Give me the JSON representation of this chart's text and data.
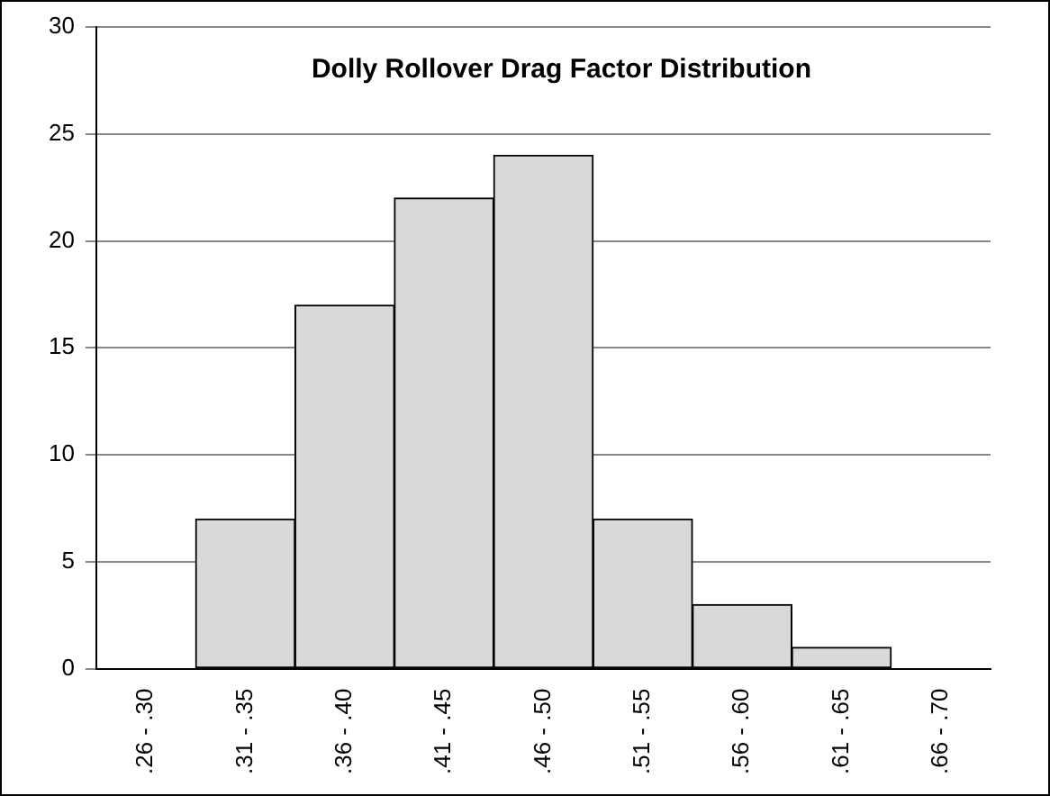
{
  "chart_data": {
    "type": "bar",
    "title": "Dolly Rollover Drag Factor Distribution",
    "categories": [
      ".26 - .30",
      ".31 - .35",
      ".36 - .40",
      ".41 - .45",
      ".46 - .50",
      ".51 - .55",
      ".56 - .60",
      ".61 - .65",
      ".66 - .70"
    ],
    "values": [
      0,
      7,
      17,
      22,
      24,
      7,
      3,
      1,
      0
    ],
    "color": "#d9d9d9",
    "ylim": [
      0,
      30
    ],
    "yticks": [
      0,
      5,
      10,
      15,
      20,
      25,
      30
    ],
    "grid": "y",
    "legend": false
  }
}
